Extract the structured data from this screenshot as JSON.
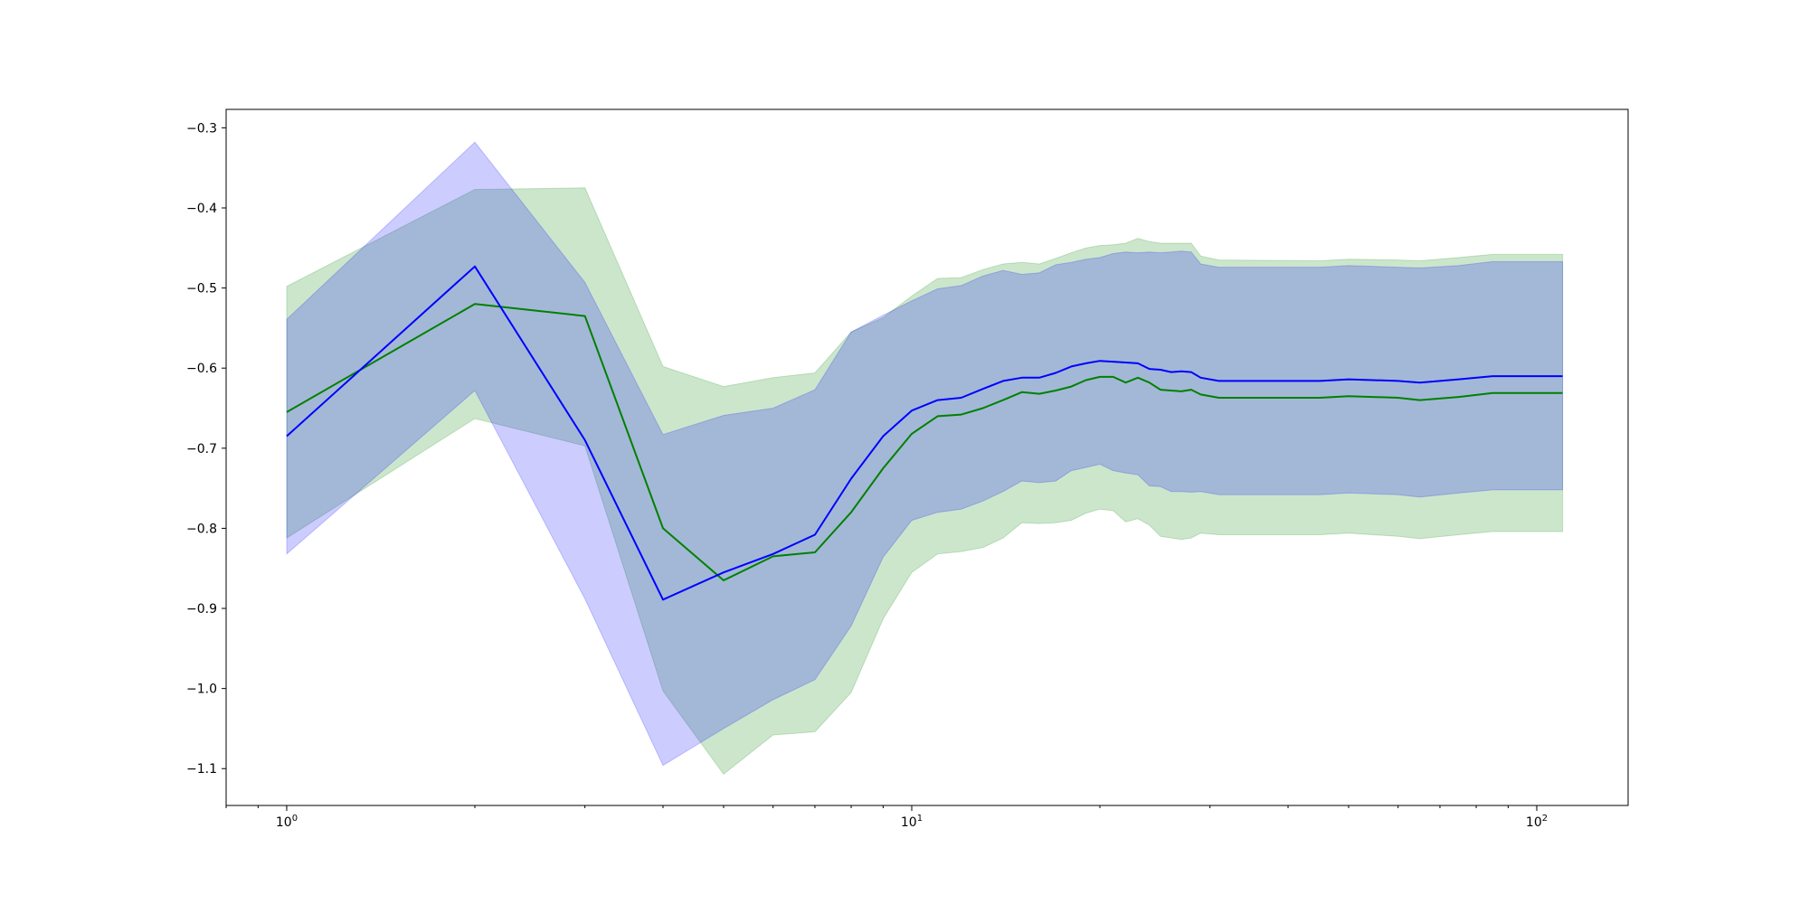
{
  "chart_data": {
    "type": "line",
    "title": "",
    "xlabel": "",
    "ylabel": "",
    "x_scale": "log",
    "xlim": [
      0.8,
      140
    ],
    "ylim": [
      -1.146,
      -0.277
    ],
    "grid": false,
    "x_ticks": [
      {
        "value": 1,
        "label": "10",
        "exp": "0"
      },
      {
        "value": 10,
        "label": "10",
        "exp": "1"
      },
      {
        "value": 100,
        "label": "10",
        "exp": "2"
      }
    ],
    "y_ticks": [
      {
        "value": -0.3,
        "label": "−0.3"
      },
      {
        "value": -0.4,
        "label": "−0.4"
      },
      {
        "value": -0.5,
        "label": "−0.5"
      },
      {
        "value": -0.6,
        "label": "−0.6"
      },
      {
        "value": -0.7,
        "label": "−0.7"
      },
      {
        "value": -0.8,
        "label": "−0.8"
      },
      {
        "value": -0.9,
        "label": "−0.9"
      },
      {
        "value": -1.0,
        "label": "−1.0"
      },
      {
        "value": -1.1,
        "label": "−1.1"
      }
    ],
    "series": [
      {
        "color": "#008000",
        "band_color": "#008000",
        "band_opacity": 0.2,
        "points": [
          [
            1,
            -0.655,
            -0.498,
            -0.812
          ],
          [
            2,
            -0.52,
            -0.377,
            -0.663
          ],
          [
            3,
            -0.535,
            -0.375,
            -0.697
          ],
          [
            4,
            -0.8,
            -0.598,
            -1.003
          ],
          [
            5,
            -0.865,
            -0.623,
            -1.107
          ],
          [
            6,
            -0.835,
            -0.612,
            -1.058
          ],
          [
            7,
            -0.83,
            -0.606,
            -1.054
          ],
          [
            8,
            -0.78,
            -0.555,
            -1.005
          ],
          [
            9,
            -0.725,
            -0.537,
            -0.913
          ],
          [
            10,
            -0.682,
            -0.51,
            -0.855
          ],
          [
            11,
            -0.66,
            -0.488,
            -0.832
          ],
          [
            12,
            -0.658,
            -0.487,
            -0.829
          ],
          [
            13,
            -0.65,
            -0.477,
            -0.824
          ],
          [
            14,
            -0.64,
            -0.47,
            -0.812
          ],
          [
            15,
            -0.63,
            -0.468,
            -0.793
          ],
          [
            16,
            -0.632,
            -0.47,
            -0.794
          ],
          [
            17,
            -0.628,
            -0.463,
            -0.793
          ],
          [
            18,
            -0.623,
            -0.456,
            -0.79
          ],
          [
            19,
            -0.615,
            -0.45,
            -0.781
          ],
          [
            20,
            -0.611,
            -0.447,
            -0.776
          ],
          [
            21,
            -0.611,
            -0.446,
            -0.778
          ],
          [
            22,
            -0.618,
            -0.444,
            -0.792
          ],
          [
            23,
            -0.612,
            -0.438,
            -0.788
          ],
          [
            24,
            -0.618,
            -0.442,
            -0.796
          ],
          [
            25,
            -0.627,
            -0.444,
            -0.81
          ],
          [
            27,
            -0.629,
            -0.444,
            -0.814
          ],
          [
            28,
            -0.627,
            -0.444,
            -0.812
          ],
          [
            29,
            -0.633,
            -0.46,
            -0.806
          ],
          [
            31,
            -0.637,
            -0.465,
            -0.808
          ],
          [
            45,
            -0.637,
            -0.466,
            -0.808
          ],
          [
            50,
            -0.635,
            -0.464,
            -0.806
          ],
          [
            60,
            -0.637,
            -0.465,
            -0.81
          ],
          [
            65,
            -0.64,
            -0.466,
            -0.813
          ],
          [
            75,
            -0.636,
            -0.462,
            -0.808
          ],
          [
            85,
            -0.631,
            -0.458,
            -0.804
          ],
          [
            110,
            -0.631,
            -0.458,
            -0.804
          ]
        ]
      },
      {
        "color": "#0000ff",
        "band_color": "#0000ff",
        "band_opacity": 0.2,
        "points": [
          [
            1,
            -0.685,
            -0.539,
            -0.832
          ],
          [
            2,
            -0.473,
            -0.318,
            -0.628
          ],
          [
            3,
            -0.69,
            -0.493,
            -0.888
          ],
          [
            4,
            -0.889,
            -0.683,
            -1.096
          ],
          [
            5,
            -0.855,
            -0.659,
            -1.05
          ],
          [
            6,
            -0.832,
            -0.65,
            -1.014
          ],
          [
            7,
            -0.808,
            -0.627,
            -0.989
          ],
          [
            8,
            -0.738,
            -0.555,
            -0.922
          ],
          [
            9,
            -0.685,
            -0.534,
            -0.836
          ],
          [
            10,
            -0.653,
            -0.516,
            -0.79
          ],
          [
            11,
            -0.64,
            -0.501,
            -0.78
          ],
          [
            12,
            -0.637,
            -0.497,
            -0.776
          ],
          [
            13,
            -0.626,
            -0.485,
            -0.766
          ],
          [
            14,
            -0.616,
            -0.478,
            -0.754
          ],
          [
            15,
            -0.612,
            -0.483,
            -0.741
          ],
          [
            16,
            -0.612,
            -0.481,
            -0.743
          ],
          [
            17,
            -0.606,
            -0.471,
            -0.741
          ],
          [
            18,
            -0.598,
            -0.468,
            -0.728
          ],
          [
            19,
            -0.594,
            -0.464,
            -0.724
          ],
          [
            20,
            -0.591,
            -0.462,
            -0.72
          ],
          [
            21,
            -0.592,
            -0.457,
            -0.728
          ],
          [
            22,
            -0.593,
            -0.455,
            -0.731
          ],
          [
            23,
            -0.594,
            -0.456,
            -0.733
          ],
          [
            24,
            -0.601,
            -0.455,
            -0.747
          ],
          [
            25,
            -0.602,
            -0.456,
            -0.748
          ],
          [
            26,
            -0.605,
            -0.455,
            -0.754
          ],
          [
            27,
            -0.604,
            -0.454,
            -0.754
          ],
          [
            28,
            -0.605,
            -0.455,
            -0.755
          ],
          [
            29,
            -0.612,
            -0.47,
            -0.754
          ],
          [
            31,
            -0.616,
            -0.474,
            -0.758
          ],
          [
            45,
            -0.616,
            -0.474,
            -0.758
          ],
          [
            50,
            -0.614,
            -0.472,
            -0.756
          ],
          [
            60,
            -0.616,
            -0.474,
            -0.758
          ],
          [
            65,
            -0.618,
            -0.475,
            -0.761
          ],
          [
            75,
            -0.614,
            -0.472,
            -0.756
          ],
          [
            85,
            -0.61,
            -0.467,
            -0.752
          ],
          [
            110,
            -0.61,
            -0.467,
            -0.752
          ]
        ]
      }
    ]
  }
}
